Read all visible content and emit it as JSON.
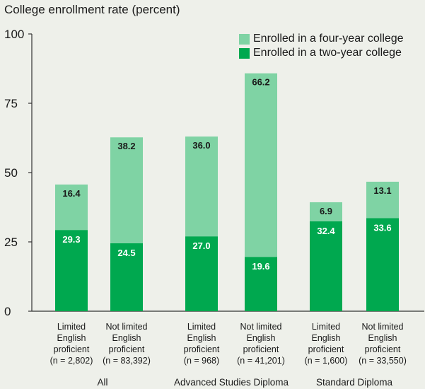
{
  "chart_data": {
    "type": "bar",
    "stacked": true,
    "title": "College enrollment rate (percent)",
    "ylim": [
      0,
      100
    ],
    "yticks": [
      0,
      25,
      50,
      75,
      100
    ],
    "grid": false,
    "legend_position": "top-right",
    "colors": {
      "two_year": "#00a84f",
      "four_year": "#7fd3a4",
      "axis": "#333333",
      "background": "#eef0ea"
    },
    "groups": [
      {
        "label": "All",
        "bars": [
          0,
          1
        ]
      },
      {
        "label": "Advanced Studies Diploma",
        "bars": [
          2,
          3
        ]
      },
      {
        "label": "Standard Diploma",
        "bars": [
          4,
          5
        ]
      }
    ],
    "categories": [
      [
        "Limited",
        "English",
        "proficient",
        "(n = 2,802)"
      ],
      [
        "Not limited",
        "English",
        "proficient",
        "(n = 83,392)"
      ],
      [
        "Limited",
        "English",
        "proficient",
        "(n = 968)"
      ],
      [
        "Not limited",
        "English",
        "proficient",
        "(n = 41,201)"
      ],
      [
        "Limited",
        "English",
        "proficient",
        "(n = 1,600)"
      ],
      [
        "Not limited",
        "English",
        "proficient",
        "(n = 33,550)"
      ]
    ],
    "series": [
      {
        "name": "Enrolled in a two-year college",
        "values": [
          29.3,
          24.5,
          27.0,
          19.6,
          32.4,
          33.6
        ],
        "labels": [
          "29.3",
          "24.5",
          "27.0",
          "19.6",
          "32.4",
          "33.6"
        ]
      },
      {
        "name": "Enrolled in a four-year college",
        "values": [
          16.4,
          38.2,
          36.0,
          66.2,
          6.9,
          13.1
        ],
        "labels": [
          "16.4",
          "38.2",
          "36.0",
          "66.2",
          "6.9",
          "13.1"
        ]
      }
    ]
  }
}
